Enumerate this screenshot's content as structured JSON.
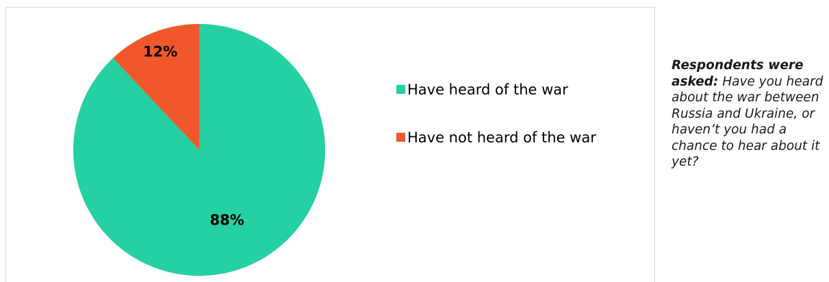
{
  "chart_data": {
    "type": "pie",
    "title": "",
    "slices": [
      {
        "name": "Have heard of the war",
        "value": 88,
        "label": "88%",
        "color": "#25d0a2"
      },
      {
        "name": "Have not heard of the war",
        "value": 12,
        "label": "12%",
        "color": "#f0582b"
      }
    ],
    "legend_position": "right"
  },
  "note": {
    "lead": "Respondents were asked:",
    "text": "Have you heard about the war between Russia and Ukraine, or haven’t you had a chance to hear about it yet?"
  }
}
